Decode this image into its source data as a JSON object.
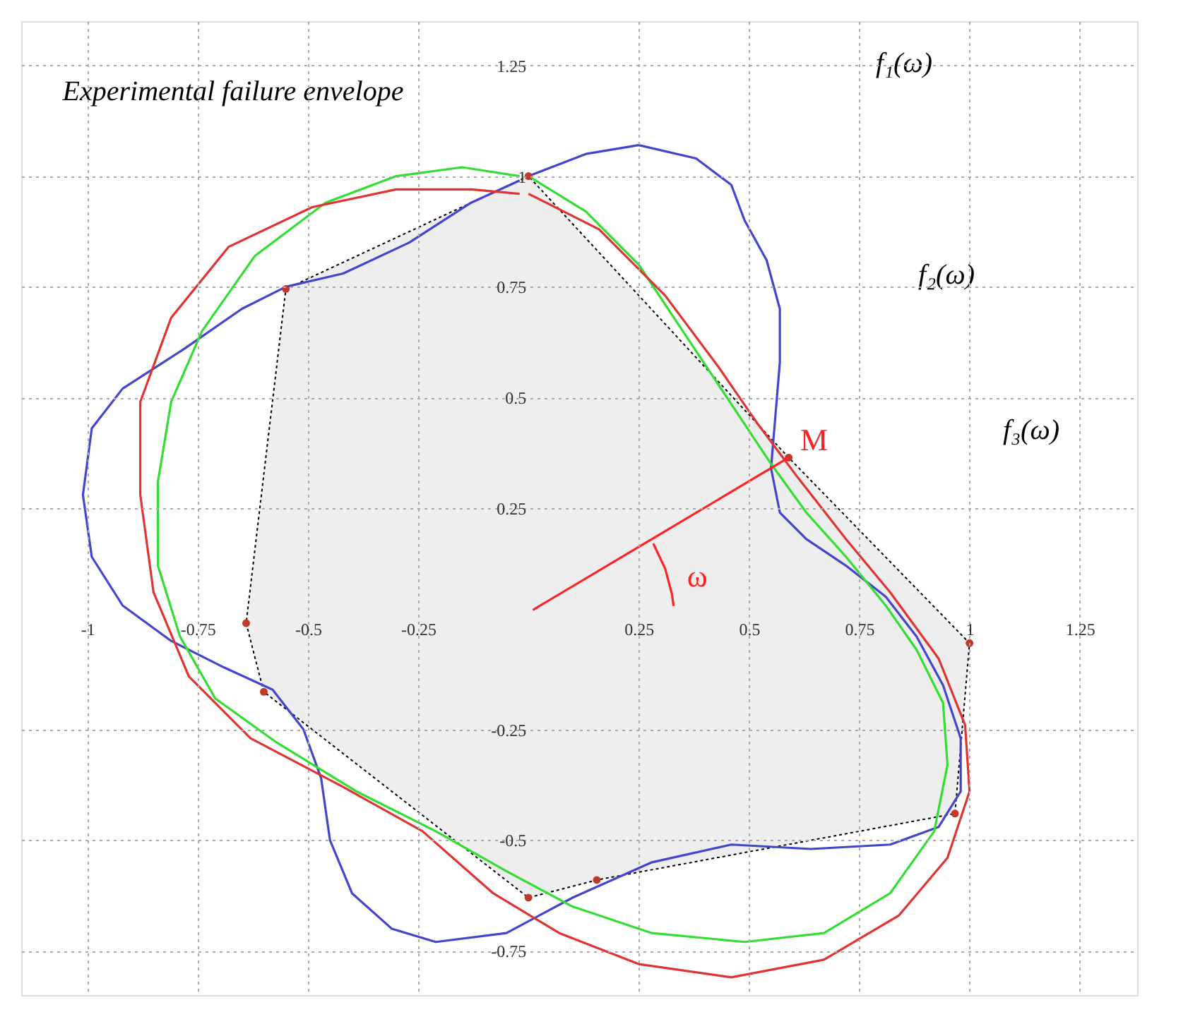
{
  "chart_data": {
    "type": "line",
    "xlim": [
      -1.15,
      1.38
    ],
    "ylim": [
      -0.85,
      1.35
    ],
    "xticks": [
      -1,
      -0.75,
      -0.5,
      -0.25,
      0.25,
      0.5,
      0.75,
      1,
      1.25
    ],
    "yticks": [
      -0.75,
      -0.5,
      -0.25,
      0.25,
      0.5,
      0.75,
      1,
      1.25
    ],
    "grid": true,
    "line_style": "solid",
    "marker": "none",
    "series": [
      {
        "type": "area",
        "color": "#eeeeee",
        "line_style": "dotted",
        "x": [
          0,
          -0.55,
          -0.64,
          -0.6,
          0,
          0.155,
          0.967,
          1.0,
          0.59,
          0
        ],
        "values": [
          1.0,
          0.745,
          -0.01,
          -0.165,
          -0.63,
          -0.59,
          -0.44,
          -0.055,
          0.364,
          1.0
        ]
      },
      {
        "color": "#4444cc",
        "x": [
          0,
          0.13,
          0.25,
          0.38,
          0.46,
          0.49,
          0.54,
          0.57,
          0.57,
          0.56,
          0.55,
          0.57,
          0.63,
          0.72,
          0.81,
          0.88,
          0.94,
          0.98,
          0.98,
          0.93,
          0.82,
          0.64,
          0.46,
          0.28,
          0.1,
          -0.05,
          -0.21,
          -0.31,
          -0.4,
          -0.45,
          -0.47,
          -0.51,
          -0.58,
          -0.69,
          -0.81,
          -0.92,
          -0.99,
          -1.01,
          -0.99,
          -0.92,
          -0.78,
          -0.65,
          -0.55,
          -0.42,
          -0.27,
          -0.13,
          -0.02
        ],
        "values": [
          1.0,
          1.05,
          1.07,
          1.04,
          0.98,
          0.9,
          0.81,
          0.7,
          0.58,
          0.46,
          0.34,
          0.24,
          0.18,
          0.12,
          0.05,
          -0.04,
          -0.15,
          -0.27,
          -0.39,
          -0.47,
          -0.51,
          -0.52,
          -0.51,
          -0.55,
          -0.63,
          -0.71,
          -0.73,
          -0.7,
          -0.62,
          -0.5,
          -0.36,
          -0.25,
          -0.16,
          -0.11,
          -0.05,
          0.03,
          0.14,
          0.28,
          0.43,
          0.52,
          0.61,
          0.7,
          0.75,
          0.78,
          0.85,
          0.94,
          0.99
        ]
      },
      {
        "color": "#33dd33",
        "x": [
          0,
          0.13,
          0.25,
          0.35,
          0.43,
          0.49,
          0.55,
          0.63,
          0.72,
          0.81,
          0.88,
          0.94,
          0.95,
          0.92,
          0.82,
          0.67,
          0.49,
          0.28,
          0.1,
          -0.05,
          -0.21,
          -0.39,
          -0.57,
          -0.71,
          -0.79,
          -0.84,
          -0.84,
          -0.81,
          -0.74,
          -0.62,
          -0.46,
          -0.3,
          -0.15,
          -0.02
        ],
        "values": [
          1.0,
          0.92,
          0.8,
          0.65,
          0.53,
          0.44,
          0.35,
          0.24,
          0.14,
          0.03,
          -0.07,
          -0.19,
          -0.33,
          -0.48,
          -0.62,
          -0.71,
          -0.73,
          -0.71,
          -0.65,
          -0.57,
          -0.48,
          -0.39,
          -0.28,
          -0.18,
          -0.04,
          0.12,
          0.31,
          0.49,
          0.65,
          0.82,
          0.94,
          1.0,
          1.02,
          1.0
        ]
      },
      {
        "color": "#e03333",
        "x": [
          0,
          0.16,
          0.31,
          0.43,
          0.52,
          0.61,
          0.72,
          0.82,
          0.93,
          0.99,
          1.0,
          0.95,
          0.84,
          0.67,
          0.46,
          0.25,
          0.07,
          -0.08,
          -0.24,
          -0.42,
          -0.63,
          -0.77,
          -0.85,
          -0.88,
          -0.88,
          -0.81,
          -0.68,
          -0.49,
          -0.3,
          -0.13,
          -0.02
        ],
        "values": [
          0.96,
          0.88,
          0.73,
          0.57,
          0.44,
          0.32,
          0.18,
          0.06,
          -0.09,
          -0.24,
          -0.39,
          -0.54,
          -0.67,
          -0.77,
          -0.81,
          -0.78,
          -0.71,
          -0.62,
          -0.48,
          -0.38,
          -0.27,
          -0.13,
          0.06,
          0.28,
          0.49,
          0.68,
          0.84,
          0.93,
          0.97,
          0.97,
          0.96
        ]
      },
      {
        "type": "scatter",
        "color": "#c0392b",
        "marker": "circle",
        "x": [
          0,
          -0.55,
          -0.64,
          -0.6,
          0,
          0.155,
          0.967,
          1.0,
          0.59
        ],
        "values": [
          1.0,
          0.745,
          -0.01,
          -0.165,
          -0.63,
          -0.59,
          -0.44,
          -0.055,
          0.364
        ]
      },
      {
        "name": "M",
        "color": "#ff2222",
        "x": [
          0.01,
          0.59
        ],
        "values": [
          0.02,
          0.364
        ]
      },
      {
        "name": "ω",
        "color": "#ff2222",
        "x": [
          0.283,
          0.31,
          0.325,
          0.329
        ],
        "values": [
          0.17,
          0.113,
          0.057,
          0.029
        ]
      }
    ],
    "annotations": [
      "Experimental failure envelope",
      "f₁(ω)",
      "f₂(ω)",
      "f₃(ω)"
    ]
  }
}
